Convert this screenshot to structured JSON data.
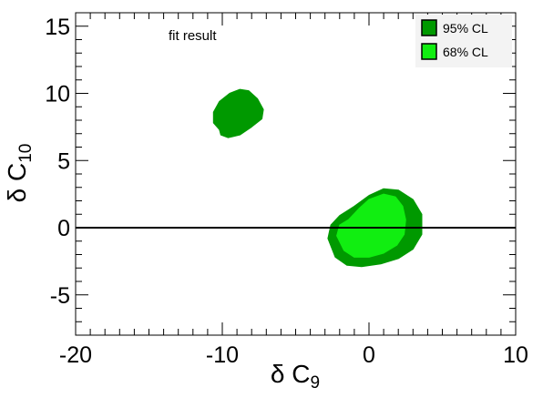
{
  "chart_data": {
    "type": "contour",
    "annotation": "fit result",
    "xlabel": {
      "symbol": "δ C",
      "subscript": "9"
    },
    "ylabel": {
      "symbol": "δ C",
      "subscript": "10"
    },
    "xlim": [
      -20,
      10
    ],
    "ylim": [
      -8,
      16
    ],
    "x_major_ticks": [
      -20,
      -10,
      0,
      10
    ],
    "x_tick_labels": [
      "-20",
      "-10",
      "0",
      "10"
    ],
    "y_major_ticks": [
      -5,
      0,
      5,
      10,
      15
    ],
    "y_tick_labels": [
      "-5",
      "0",
      "5",
      "10",
      "15"
    ],
    "x_minor_step": 1,
    "y_minor_step": 1,
    "grid": false,
    "legend_position": "top-right",
    "reference_line": {
      "y": 0,
      "color": "#000000"
    },
    "series": [
      {
        "name": "95% CL",
        "color": "#009900",
        "regions": [
          [
            [
              -10.2,
              7.3
            ],
            [
              -10.6,
              7.8
            ],
            [
              -10.6,
              8.6
            ],
            [
              -10.2,
              9.4
            ],
            [
              -9.5,
              10.0
            ],
            [
              -8.8,
              10.3
            ],
            [
              -8.2,
              10.2
            ],
            [
              -7.6,
              9.6
            ],
            [
              -7.2,
              8.8
            ],
            [
              -7.3,
              8.1
            ],
            [
              -8.0,
              7.5
            ],
            [
              -8.8,
              6.9
            ],
            [
              -9.6,
              6.7
            ],
            [
              -10.1,
              6.9
            ]
          ],
          [
            [
              -2.8,
              -0.8
            ],
            [
              -2.6,
              0.2
            ],
            [
              -2.0,
              0.9
            ],
            [
              -1.0,
              1.6
            ],
            [
              0.0,
              2.4
            ],
            [
              1.0,
              2.9
            ],
            [
              2.0,
              2.8
            ],
            [
              3.0,
              2.1
            ],
            [
              3.6,
              1.0
            ],
            [
              3.6,
              -0.5
            ],
            [
              3.0,
              -1.6
            ],
            [
              2.0,
              -2.3
            ],
            [
              0.8,
              -2.7
            ],
            [
              -0.5,
              -2.9
            ],
            [
              -1.5,
              -2.8
            ],
            [
              -2.3,
              -2.2
            ]
          ]
        ]
      },
      {
        "name": "68% CL",
        "color": "#11ee11",
        "regions": [
          [
            [
              -2.2,
              -0.6
            ],
            [
              -2.0,
              0.2
            ],
            [
              -1.4,
              0.6
            ],
            [
              -0.7,
              1.4
            ],
            [
              0.0,
              2.1
            ],
            [
              1.0,
              2.5
            ],
            [
              1.8,
              2.3
            ],
            [
              2.3,
              1.6
            ],
            [
              2.5,
              0.6
            ],
            [
              2.4,
              -0.5
            ],
            [
              1.9,
              -1.3
            ],
            [
              1.0,
              -1.9
            ],
            [
              0.0,
              -2.2
            ],
            [
              -1.0,
              -2.2
            ],
            [
              -1.7,
              -1.7
            ]
          ]
        ]
      }
    ]
  }
}
